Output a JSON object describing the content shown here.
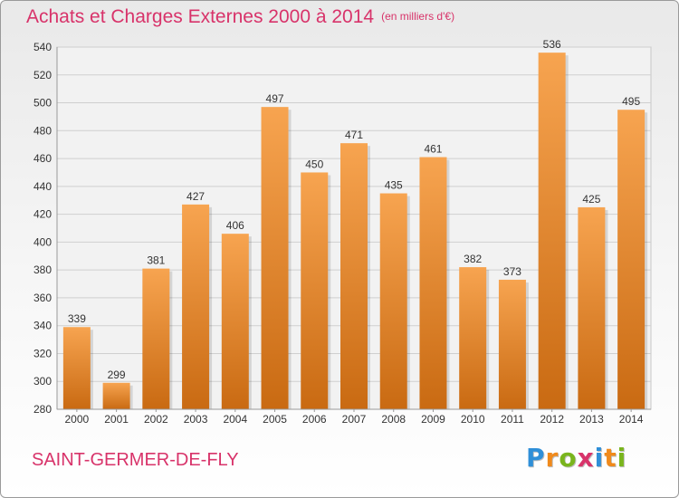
{
  "title": "Achats et Charges Externes 2000 à 2014",
  "subtitle": "(en milliers d'€)",
  "location": "SAINT-GERMER-DE-FLY",
  "logo": {
    "text": "Proxiti",
    "letters": [
      {
        "char": "P",
        "color": "#2f8fd8"
      },
      {
        "char": "r",
        "color": "#f08a1c"
      },
      {
        "char": "o",
        "color": "#7ab51d"
      },
      {
        "char": "x",
        "color": "#d8336a"
      },
      {
        "char": "i",
        "color": "#2f8fd8"
      },
      {
        "char": "t",
        "color": "#f08a1c"
      },
      {
        "char": "i",
        "color": "#7ab51d"
      }
    ]
  },
  "colors": {
    "title": "#d8336a",
    "bar_top": "#f7a450",
    "bar_bottom": "#c96a12",
    "grid": "#cfcfcf",
    "axis_text": "#333333"
  },
  "chart_data": {
    "type": "bar",
    "categories": [
      "2000",
      "2001",
      "2002",
      "2003",
      "2004",
      "2005",
      "2006",
      "2007",
      "2008",
      "2009",
      "2010",
      "2011",
      "2012",
      "2013",
      "2014"
    ],
    "values": [
      339,
      299,
      381,
      427,
      406,
      497,
      450,
      471,
      435,
      461,
      382,
      373,
      536,
      425,
      495
    ],
    "ylim": [
      280,
      540
    ],
    "yticks": [
      280,
      300,
      320,
      340,
      360,
      380,
      400,
      420,
      440,
      460,
      480,
      500,
      520,
      540
    ],
    "grid": true,
    "legend": "none"
  }
}
